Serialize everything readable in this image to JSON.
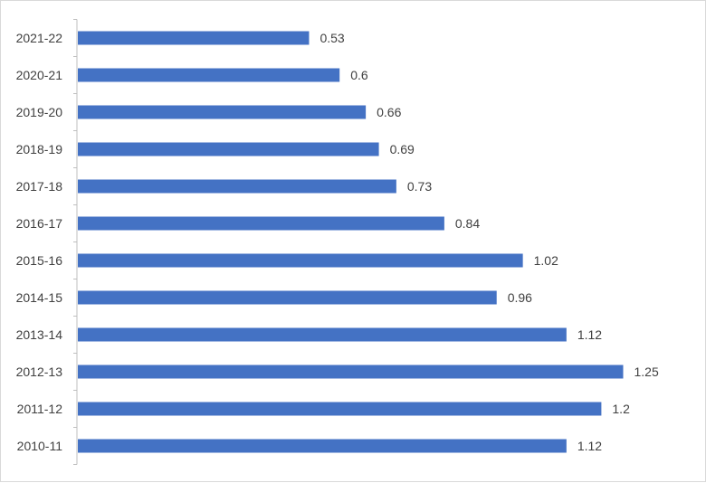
{
  "chart_data": {
    "type": "bar",
    "orientation": "horizontal",
    "title": "",
    "xlabel": "",
    "ylabel": "",
    "categories": [
      "2021-22",
      "2020-21",
      "2019-20",
      "2018-19",
      "2017-18",
      "2016-17",
      "2015-16",
      "2014-15",
      "2013-14",
      "2012-13",
      "2011-12",
      "2010-11"
    ],
    "values": [
      0.53,
      0.6,
      0.66,
      0.69,
      0.73,
      0.84,
      1.02,
      0.96,
      1.12,
      1.25,
      1.2,
      1.12
    ],
    "value_labels": [
      "0.53",
      "0.6",
      "0.66",
      "0.69",
      "0.73",
      "0.84",
      "1.02",
      "0.96",
      "1.12",
      "1.25",
      "1.2",
      "1.12"
    ],
    "xlim": [
      0,
      1.4
    ],
    "grid": false,
    "legend": "none",
    "bar_color": "#4472c4"
  }
}
